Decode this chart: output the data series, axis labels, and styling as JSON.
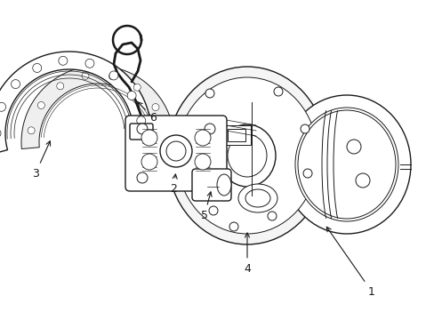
{
  "background_color": "#ffffff",
  "line_color": "#1a1a1a",
  "figsize": [
    4.89,
    3.6
  ],
  "dpi": 100,
  "label_fontsize": 9
}
